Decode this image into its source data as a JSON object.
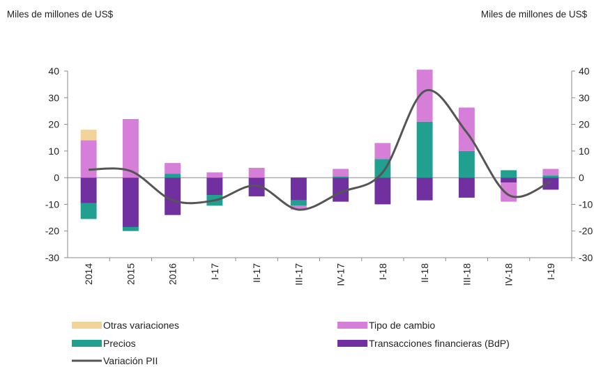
{
  "chart_data": {
    "type": "bar",
    "ylabel": "Miles de millones de US$",
    "y2label": "Miles de millones de US$",
    "categories": [
      "2014",
      "2015",
      "2016",
      "I-17",
      "II-17",
      "III-17",
      "IV-17",
      "I-18",
      "II-18",
      "III-18",
      "IV-18",
      "I-19"
    ],
    "series": [
      {
        "name": "Transacciones financieras (BdP)",
        "color": "#7030a0",
        "values": [
          -9.5,
          -18.5,
          -14,
          -6.5,
          -7,
          -8.5,
          -9,
          -10,
          -8.5,
          -7.5,
          -1.8,
          -4.5
        ]
      },
      {
        "name": "Precios",
        "color": "#21a08f",
        "values": [
          -6,
          -1.5,
          1.5,
          -4,
          0,
          -2,
          0.5,
          7,
          21,
          10,
          2.8,
          0.8
        ]
      },
      {
        "name": "Tipo de cambio",
        "color": "#d57fd9",
        "values": [
          14,
          22,
          4,
          2,
          3.7,
          -1.5,
          2.8,
          6,
          19.5,
          16.3,
          -7.2,
          2.5
        ]
      },
      {
        "name": "Otras variaciones",
        "color": "#f2d49a",
        "values": [
          4,
          0,
          0,
          0,
          0,
          0,
          0,
          0,
          0,
          0,
          0,
          0
        ]
      },
      {
        "name": "Variación PII",
        "type": "line",
        "color": "#555555",
        "values": [
          3,
          2.5,
          -8.5,
          -8.5,
          -3,
          -12,
          -5.5,
          2,
          32.5,
          17,
          -6.5,
          -1.5
        ]
      }
    ],
    "ylim": [
      -30,
      40
    ],
    "yticks": [
      -30,
      -20,
      -10,
      0,
      10,
      20,
      30,
      40
    ],
    "y2lim": [
      -30,
      40
    ],
    "y2ticks": [
      -30,
      -20,
      -10,
      0,
      10,
      20,
      30,
      40
    ],
    "stacked": true
  }
}
